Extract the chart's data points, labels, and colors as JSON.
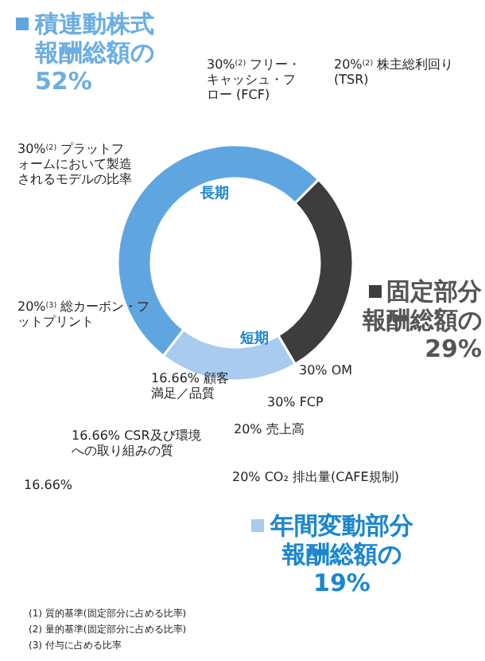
{
  "chart_data": {
    "type": "donut",
    "categories": [
      "固定部分",
      "年間変動部分",
      "積連動株式"
    ],
    "values": [
      29,
      19,
      52
    ],
    "colors": [
      "#3d3d3d",
      "#a9cbef",
      "#5fa6e1"
    ],
    "legend": "right",
    "value_labels": [
      "報酬総額の29%",
      "報酬総額の19%",
      "報酬総額の52%"
    ],
    "annotations": [
      "30%$^{(2)}$ フリー・キャッシュ・フロー (FCF)",
      "20%$^{(2)}$ 株主総利回り (TSR)",
      "30%$^{(2)}$ プラットフォームにおいて製造されるモデルの比率",
      "20%$^{(3)}$ 総カーボン・フットプリント",
      "30% OM",
      "30% FCP",
      "20% 売上高",
      "16.66% 顧客満足／品質",
      "16.66% CSR及び環境への取り組みの質",
      "20% CO₂ 排出量(CAFE規制)",
      "16.66%",
      "長期",
      "短期",
      "(1) 質的基準(固定部分に占める比率)",
      "(2) 量的基準(固定部分に占める比率)",
      "(3) 付与に占める比率"
    ]
  }
}
